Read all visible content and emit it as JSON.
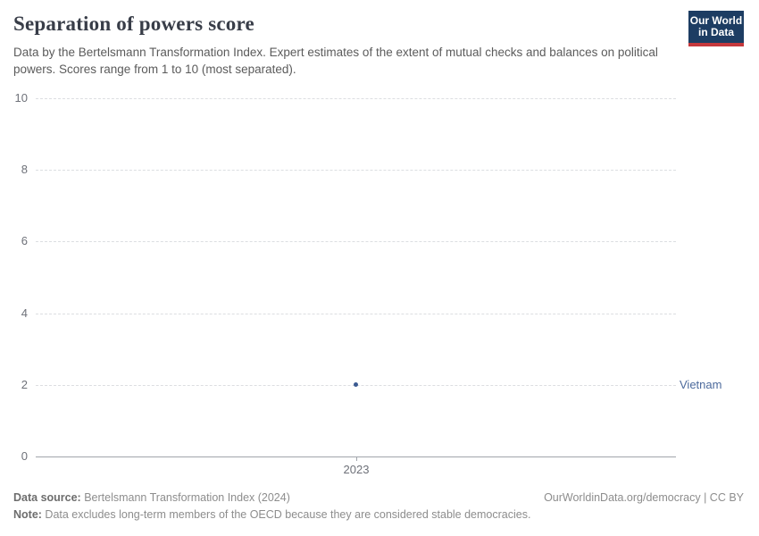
{
  "header": {
    "title": "Separation of powers score",
    "subtitle": "Data by the Bertelsmann Transformation Index. Expert estimates of the extent of mutual checks and balances on political powers. Scores range from 1 to 10 (most separated).",
    "logo": {
      "line1": "Our World",
      "line2": "in Data",
      "bg_color": "#1d3d63",
      "stripe_color": "#c5383c"
    }
  },
  "chart_data": {
    "type": "scatter",
    "title": "Separation of powers score",
    "x": [
      2023
    ],
    "xtick_labels": [
      "2023"
    ],
    "series": [
      {
        "name": "Vietnam",
        "values": [
          2
        ],
        "point_color": "#3b5a91",
        "label_color": "#4c6a9c"
      }
    ],
    "ylim": [
      0,
      10
    ],
    "yticks": [
      0,
      2,
      4,
      6,
      8,
      10
    ],
    "xlabel": "",
    "ylabel": "",
    "grid": "horizontal-dashed",
    "legend_position": "right-of-point"
  },
  "footer": {
    "datasource_label": "Data source:",
    "datasource_value": " Bertelsmann Transformation Index (2024)",
    "rights": "OurWorldinData.org/democracy | CC BY",
    "note_label": "Note:",
    "note_value": " Data excludes long-term members of the OECD because they are considered stable democracies."
  }
}
